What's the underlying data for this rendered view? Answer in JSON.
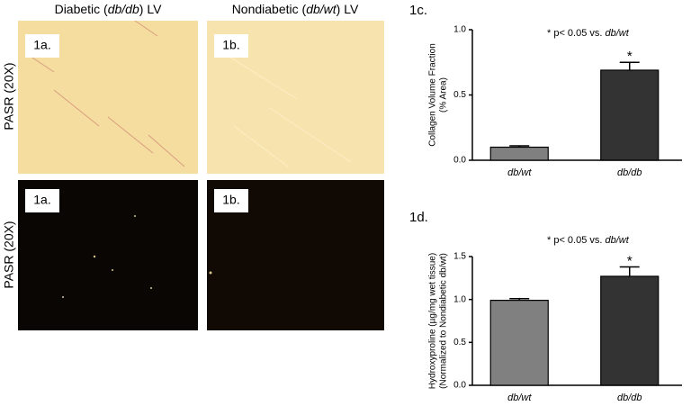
{
  "panels": {
    "col_headers": [
      [
        "Diabetic (",
        "db/db",
        ") LV"
      ],
      [
        "Nondiabetic (",
        "db/wt",
        ") LV"
      ]
    ],
    "row_labels": [
      "PASR (20X)",
      "PASR (20X)"
    ],
    "image_labels": [
      [
        "1a.",
        "1b."
      ],
      [
        "1a.",
        "1b."
      ]
    ]
  },
  "chart_data": [
    {
      "type": "bar",
      "title": "1c.",
      "note": [
        "* p< 0.05 vs. ",
        "db/wt"
      ],
      "ylabel": [
        "Collagen Volume Fraction",
        "(% Area)"
      ],
      "categories": [
        "db/wt",
        "db/db"
      ],
      "values": [
        0.1,
        0.69
      ],
      "errors": [
        0.01,
        0.06
      ],
      "significance": [
        null,
        "*"
      ],
      "colors": [
        "#808080",
        "#333333"
      ],
      "ylim": [
        0,
        1
      ],
      "yticks": [
        {
          "value": 0,
          "label": "0.0"
        },
        {
          "value": 0.5,
          "label": "0.5"
        },
        {
          "value": 1,
          "label": "1.0"
        }
      ]
    },
    {
      "type": "bar",
      "title": "1d.",
      "note": [
        "* p< 0.05 vs. ",
        "db/wt"
      ],
      "ylabel": [
        "Hydroxyproline (µg/mg wet tissue)",
        "(Normalized to Nondiabetic db/wt)"
      ],
      "categories": [
        "db/wt",
        "db/db"
      ],
      "values": [
        0.99,
        1.27
      ],
      "errors": [
        0.02,
        0.11
      ],
      "significance": [
        null,
        "*"
      ],
      "colors": [
        "#808080",
        "#333333"
      ],
      "ylim": [
        0,
        1.5
      ],
      "yticks": [
        {
          "value": 0,
          "label": "0.0"
        },
        {
          "value": 0.5,
          "label": "0.5"
        },
        {
          "value": 1,
          "label": "1.0"
        },
        {
          "value": 1.5,
          "label": "1.5"
        }
      ]
    }
  ]
}
